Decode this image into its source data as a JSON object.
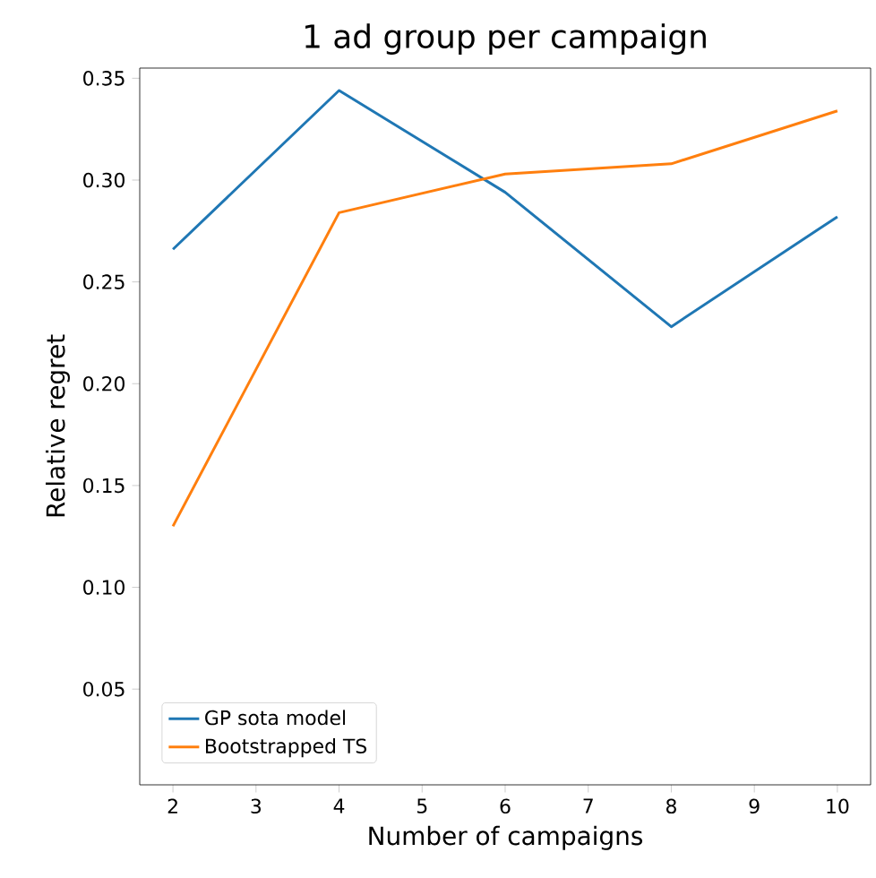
{
  "chart_data": {
    "type": "line",
    "title": "1 ad group per campaign",
    "xlabel": "Number of campaigns",
    "ylabel": "Relative regret",
    "x": [
      2,
      4,
      6,
      8,
      10
    ],
    "series": [
      {
        "name": "GP sota model",
        "color": "#1f77b4",
        "values": [
          0.266,
          0.344,
          0.294,
          0.228,
          0.282
        ]
      },
      {
        "name": "Bootstrapped TS",
        "color": "#ff7f0e",
        "values": [
          0.13,
          0.284,
          0.303,
          0.308,
          0.334
        ]
      }
    ],
    "xlim": [
      1.6,
      10.4
    ],
    "ylim": [
      0.003,
      0.355
    ],
    "xticks": [
      2,
      3,
      4,
      5,
      6,
      7,
      8,
      9,
      10
    ],
    "yticks": [
      {
        "value": 0.05,
        "label": "0.05"
      },
      {
        "value": 0.1,
        "label": "0.10"
      },
      {
        "value": 0.15,
        "label": "0.15"
      },
      {
        "value": 0.2,
        "label": "0.20"
      },
      {
        "value": 0.25,
        "label": "0.25"
      },
      {
        "value": 0.3,
        "label": "0.30"
      },
      {
        "value": 0.35,
        "label": "0.35"
      }
    ],
    "legend": "bottom left",
    "grid": false
  }
}
